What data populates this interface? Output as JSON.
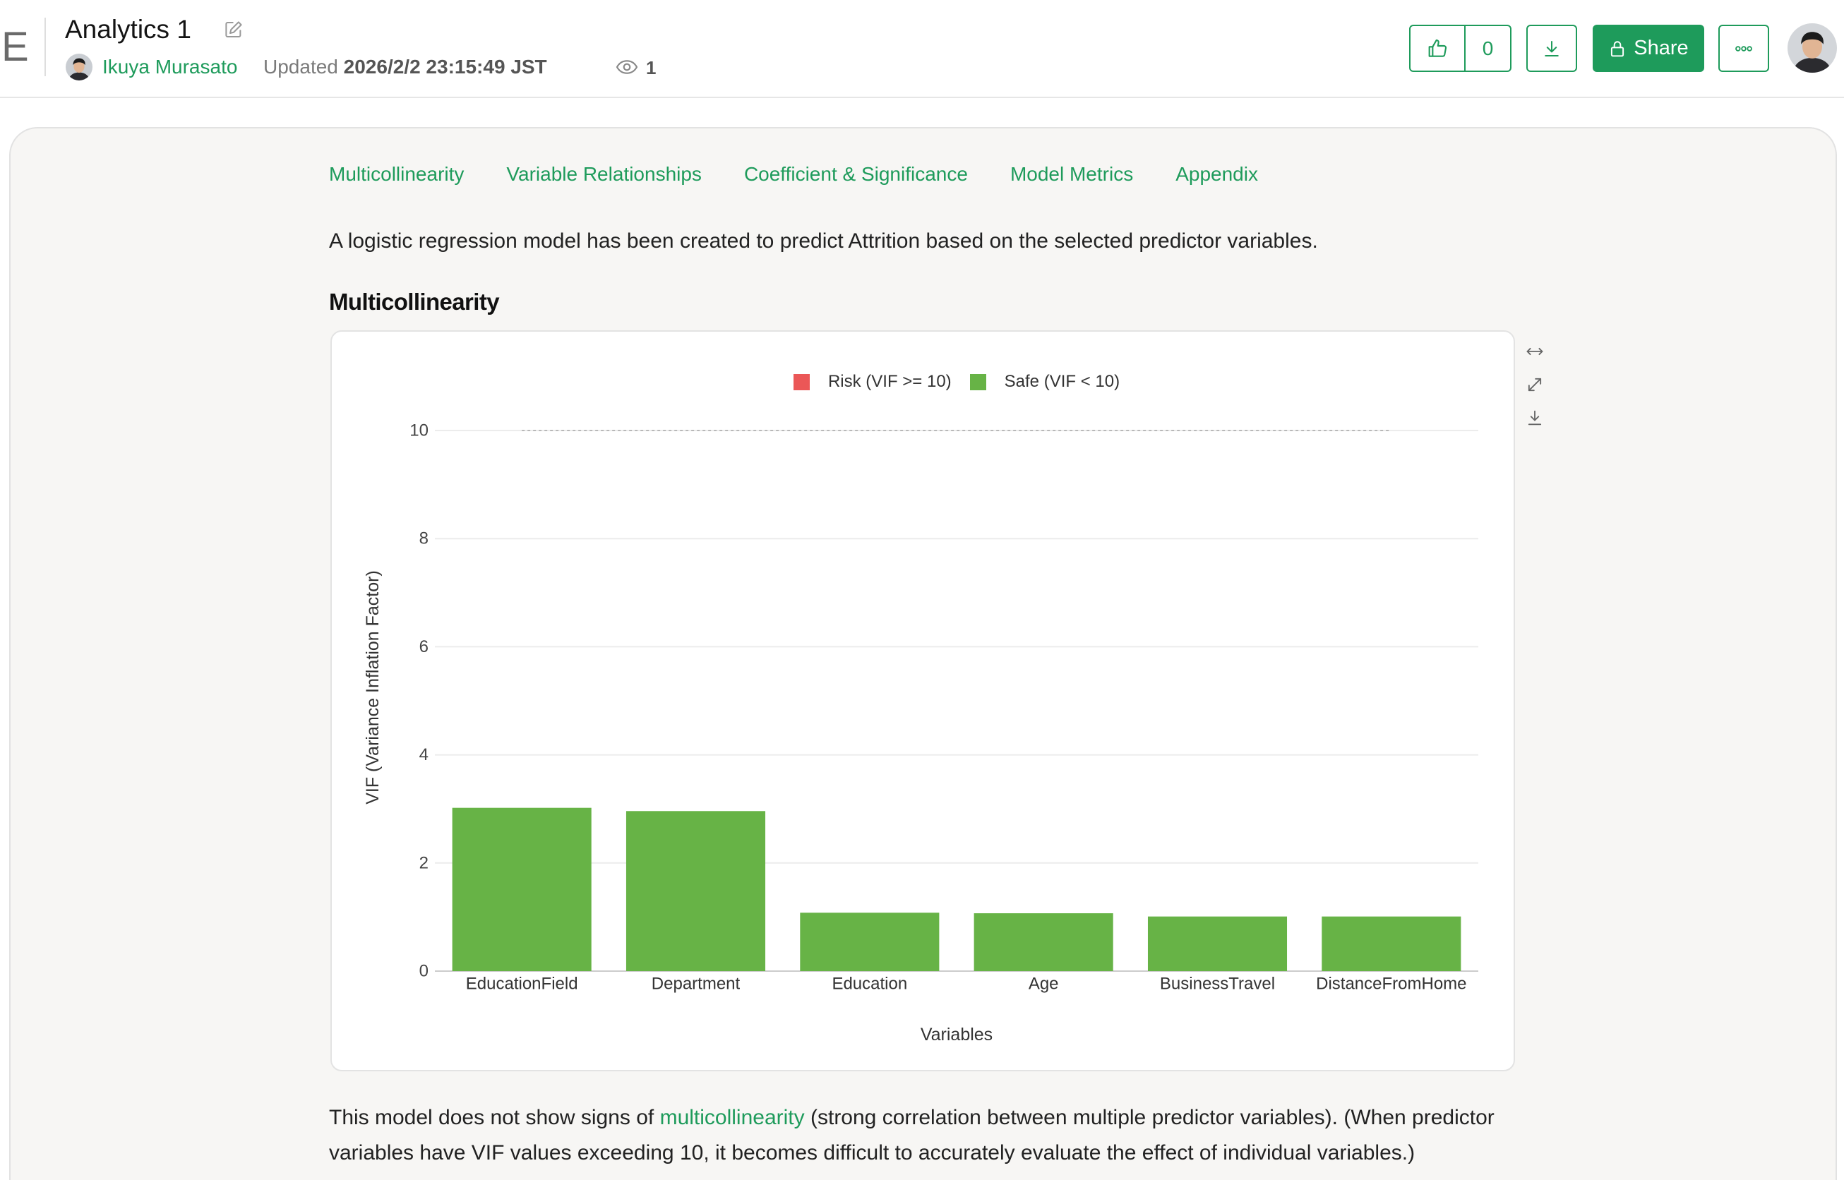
{
  "header": {
    "logo_letter": "E",
    "title": "Analytics 1",
    "author": "Ikuya Murasato",
    "updated_label": "Updated",
    "updated_at": "2026/2/2 23:15:49 JST",
    "view_count": "1",
    "like_count": "0",
    "share_label": "Share"
  },
  "nav": {
    "tabs": [
      "Multicollinearity",
      "Variable Relationships",
      "Coefficient & Significance",
      "Model Metrics",
      "Appendix"
    ]
  },
  "intro": "A logistic regression model has been created to predict Attrition based on the selected predictor variables.",
  "section_title": "Multicollinearity",
  "chart_data": {
    "type": "bar",
    "categories": [
      "EducationField",
      "Department",
      "Education",
      "Age",
      "BusinessTravel",
      "DistanceFromHome"
    ],
    "values": [
      3.02,
      2.96,
      1.08,
      1.07,
      1.01,
      1.01
    ],
    "threshold": 10,
    "legend": [
      {
        "label": "Risk (VIF >= 10)",
        "color": "#eb5757"
      },
      {
        "label": "Safe (VIF < 10)",
        "color": "#67b346"
      }
    ],
    "legend_position": "top",
    "xlabel": "Variables",
    "ylabel": "VIF (Variance Inflation Factor)",
    "ylim": [
      0,
      10
    ],
    "yticks": [
      0,
      2,
      4,
      6,
      8,
      10
    ],
    "grid": true
  },
  "conclusion": {
    "before": "This model does not show signs of ",
    "link": "multicollinearity",
    "after": " (strong correlation between multiple predictor variables). (When predictor variables have VIF values exceeding 10, it becomes difficult to accurately evaluate the effect of individual variables.)"
  },
  "colors": {
    "accent": "#1e9b5b",
    "card_background": "#f7f6f4"
  },
  "icons": {
    "edit": "edit-icon",
    "like": "thumbs-up-icon",
    "download": "download-icon",
    "share": "lock-icon",
    "more": "more-icon",
    "views": "eye-icon",
    "chart_tools": [
      "expand-width-icon",
      "fullscreen-icon",
      "chart-download-icon"
    ]
  }
}
